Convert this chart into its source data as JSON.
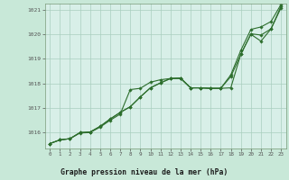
{
  "title": "Graphe pression niveau de la mer (hPa)",
  "bg_color": "#c8e8d8",
  "plot_bg_color": "#d8efe8",
  "grid_color": "#aacfbf",
  "line_color": "#2d6e2d",
  "marker": "D",
  "markersize": 1.8,
  "linewidth": 0.8,
  "ylim": [
    1015.35,
    1021.25
  ],
  "xlim": [
    -0.5,
    23.5
  ],
  "yticks": [
    1016,
    1017,
    1018,
    1019,
    1020,
    1021
  ],
  "xticks": [
    0,
    1,
    2,
    3,
    4,
    5,
    6,
    7,
    8,
    9,
    10,
    11,
    12,
    13,
    14,
    15,
    16,
    17,
    18,
    19,
    20,
    21,
    22,
    23
  ],
  "line1": [
    1015.55,
    1015.7,
    1015.75,
    1015.98,
    1016.0,
    1016.22,
    1016.5,
    1016.75,
    1017.75,
    1017.8,
    1018.05,
    1018.15,
    1018.2,
    1018.2,
    1017.82,
    1017.82,
    1017.8,
    1017.8,
    1018.28,
    1019.18,
    1020.02,
    1019.97,
    1020.22,
    1021.15
  ],
  "line2": [
    1015.55,
    1015.7,
    1015.75,
    1016.0,
    1016.02,
    1016.25,
    1016.55,
    1016.82,
    1017.05,
    1017.45,
    1017.82,
    1018.02,
    1018.2,
    1018.22,
    1017.82,
    1017.82,
    1017.8,
    1017.8,
    1017.82,
    1019.2,
    1020.0,
    1019.72,
    1020.22,
    1021.08
  ],
  "line3": [
    1015.55,
    1015.7,
    1015.75,
    1016.0,
    1016.02,
    1016.25,
    1016.55,
    1016.82,
    1017.05,
    1017.45,
    1017.82,
    1018.02,
    1018.2,
    1018.22,
    1017.82,
    1017.82,
    1017.8,
    1017.8,
    1018.35,
    1019.35,
    1020.2,
    1020.3,
    1020.52,
    1021.22
  ]
}
